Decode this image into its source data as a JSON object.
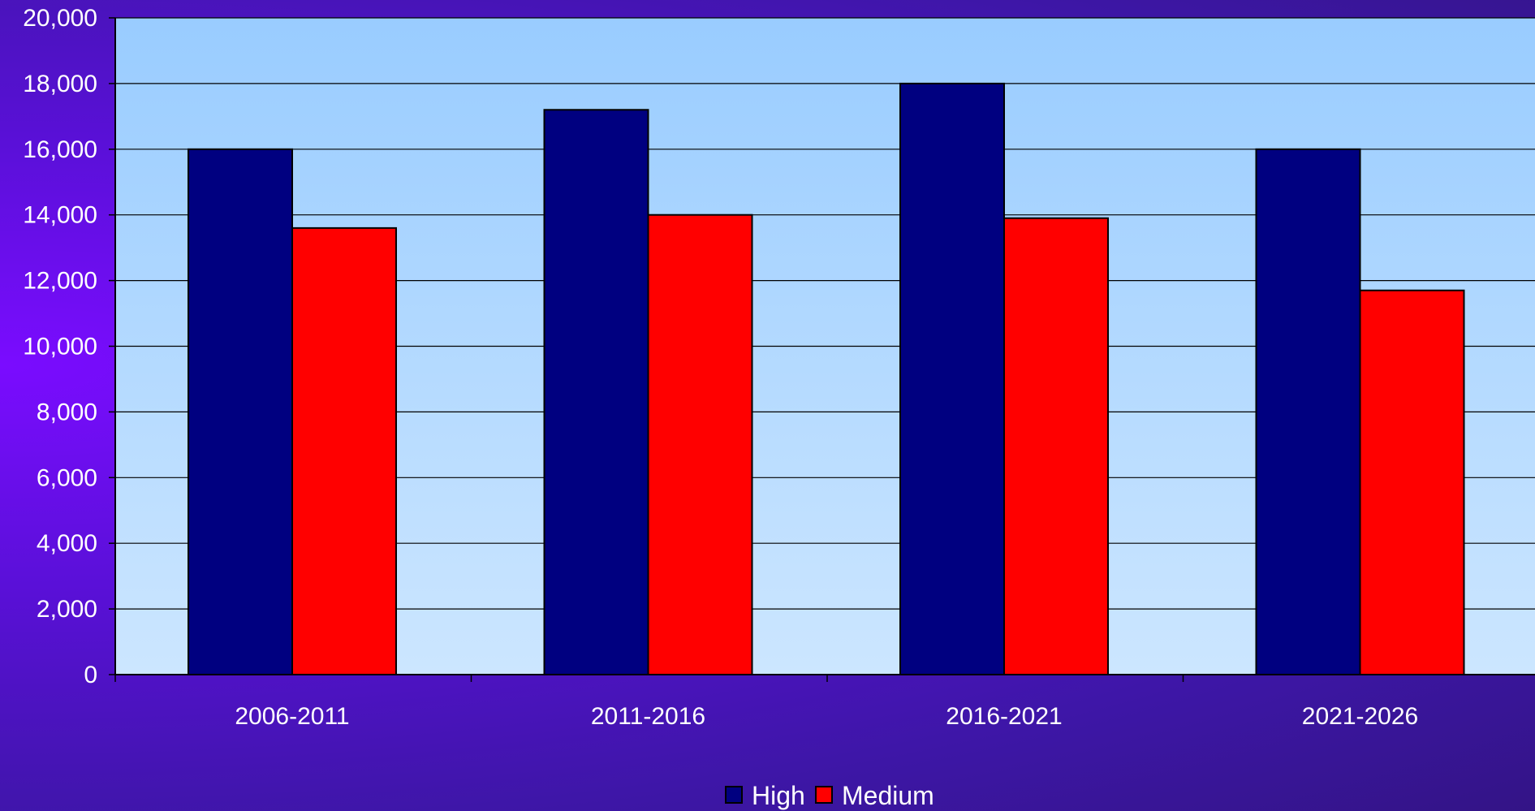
{
  "chart_data": {
    "type": "bar",
    "categories": [
      "2006-2011",
      "2011-2016",
      "2016-2021",
      "2021-2026"
    ],
    "series": [
      {
        "name": "High",
        "values": [
          16000,
          17200,
          18000,
          16000
        ],
        "color": "#000080"
      },
      {
        "name": "Medium",
        "values": [
          13600,
          14000,
          13900,
          11700
        ],
        "color": "#ff0000"
      }
    ],
    "title": "",
    "xlabel": "",
    "ylabel": "",
    "ylim": [
      0,
      20000
    ],
    "yticks": [
      "0",
      "2,000",
      "4,000",
      "6,000",
      "8,000",
      "10,000",
      "12,000",
      "14,000",
      "16,000",
      "18,000",
      "20,000"
    ],
    "grid": true,
    "legend_position": "bottom-center"
  }
}
